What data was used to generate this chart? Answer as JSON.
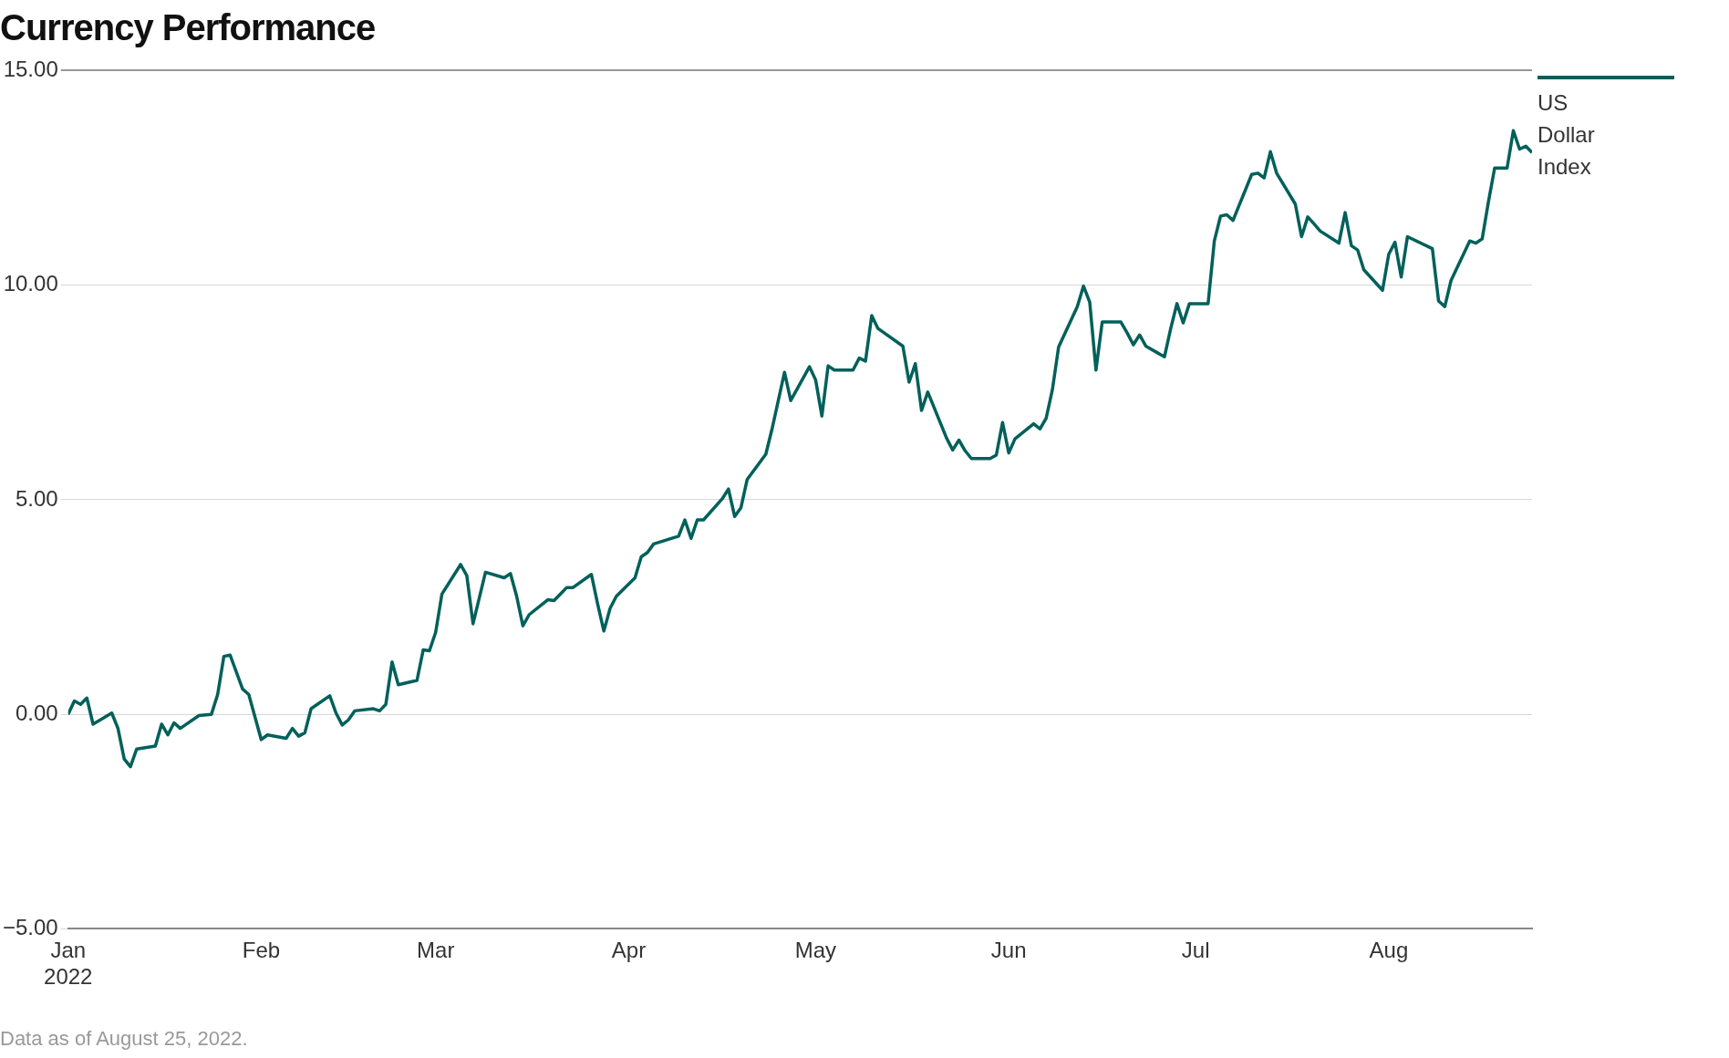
{
  "chart_data": {
    "type": "line",
    "title": "Currency Performance",
    "annotations": [
      "Data as of August 25, 2022."
    ],
    "x": [
      "2022-01-01",
      "2022-01-02",
      "2022-01-03",
      "2022-01-04",
      "2022-01-05",
      "2022-01-08",
      "2022-01-09",
      "2022-01-10",
      "2022-01-11",
      "2022-01-12",
      "2022-01-15",
      "2022-01-16",
      "2022-01-17",
      "2022-01-18",
      "2022-01-19",
      "2022-01-22",
      "2022-01-24",
      "2022-01-25",
      "2022-01-26",
      "2022-01-27",
      "2022-01-29",
      "2022-01-30",
      "2022-02-01",
      "2022-02-02",
      "2022-02-05",
      "2022-02-06",
      "2022-02-07",
      "2022-02-08",
      "2022-02-09",
      "2022-02-12",
      "2022-02-13",
      "2022-02-14",
      "2022-02-15",
      "2022-02-16",
      "2022-02-19",
      "2022-02-20",
      "2022-02-21",
      "2022-02-22",
      "2022-02-23",
      "2022-02-26",
      "2022-02-27",
      "2022-02-28",
      "2022-03-01",
      "2022-03-02",
      "2022-03-05",
      "2022-03-06",
      "2022-03-07",
      "2022-03-09",
      "2022-03-12",
      "2022-03-13",
      "2022-03-14",
      "2022-03-15",
      "2022-03-16",
      "2022-03-19",
      "2022-03-20",
      "2022-03-21",
      "2022-03-22",
      "2022-03-23",
      "2022-03-26",
      "2022-03-27",
      "2022-03-28",
      "2022-03-29",
      "2022-03-30",
      "2022-04-02",
      "2022-04-03",
      "2022-04-04",
      "2022-04-05",
      "2022-04-09",
      "2022-04-10",
      "2022-04-11",
      "2022-04-12",
      "2022-04-13",
      "2022-04-16",
      "2022-04-17",
      "2022-04-18",
      "2022-04-19",
      "2022-04-20",
      "2022-04-23",
      "2022-04-24",
      "2022-04-26",
      "2022-04-27",
      "2022-04-30",
      "2022-05-01",
      "2022-05-02",
      "2022-05-03",
      "2022-05-04",
      "2022-05-07",
      "2022-05-08",
      "2022-05-09",
      "2022-05-10",
      "2022-05-11",
      "2022-05-15",
      "2022-05-16",
      "2022-05-17",
      "2022-05-18",
      "2022-05-19",
      "2022-05-22",
      "2022-05-23",
      "2022-05-24",
      "2022-05-25",
      "2022-05-26",
      "2022-05-29",
      "2022-05-30",
      "2022-05-31",
      "2022-06-01",
      "2022-06-02",
      "2022-06-05",
      "2022-06-06",
      "2022-06-07",
      "2022-06-08",
      "2022-06-09",
      "2022-06-12",
      "2022-06-13",
      "2022-06-14",
      "2022-06-15",
      "2022-06-16",
      "2022-06-19",
      "2022-06-20",
      "2022-06-21",
      "2022-06-22",
      "2022-06-23",
      "2022-06-26",
      "2022-06-27",
      "2022-06-28",
      "2022-06-29",
      "2022-06-30",
      "2022-07-03",
      "2022-07-04",
      "2022-07-05",
      "2022-07-06",
      "2022-07-07",
      "2022-07-10",
      "2022-07-11",
      "2022-07-12",
      "2022-07-13",
      "2022-07-14",
      "2022-07-17",
      "2022-07-18",
      "2022-07-19",
      "2022-07-20",
      "2022-07-21",
      "2022-07-24",
      "2022-07-25",
      "2022-07-26",
      "2022-07-27",
      "2022-07-28",
      "2022-07-31",
      "2022-08-01",
      "2022-08-02",
      "2022-08-03",
      "2022-08-04",
      "2022-08-08",
      "2022-08-09",
      "2022-08-10",
      "2022-08-11",
      "2022-08-14",
      "2022-08-15",
      "2022-08-16",
      "2022-08-17",
      "2022-08-18",
      "2022-08-20",
      "2022-08-21",
      "2022-08-22",
      "2022-08-23",
      "2022-08-24"
    ],
    "series": [
      {
        "name": "US Dollar Index",
        "color": "#00605a",
        "values": [
          0.0,
          0.31,
          0.23,
          0.38,
          -0.23,
          0.03,
          -0.33,
          -1.04,
          -1.22,
          -0.81,
          -0.74,
          -0.23,
          -0.48,
          -0.2,
          -0.33,
          -0.03,
          0.0,
          0.46,
          1.35,
          1.38,
          0.59,
          0.46,
          -0.59,
          -0.48,
          -0.56,
          -0.33,
          -0.51,
          -0.43,
          0.13,
          0.43,
          0.03,
          -0.25,
          -0.13,
          0.08,
          0.13,
          0.08,
          0.23,
          1.22,
          0.69,
          0.79,
          1.5,
          1.48,
          1.91,
          2.8,
          3.49,
          3.23,
          2.11,
          3.31,
          3.18,
          3.28,
          2.75,
          2.06,
          2.32,
          2.67,
          2.65,
          2.8,
          2.95,
          2.95,
          3.26,
          2.57,
          1.94,
          2.47,
          2.75,
          3.18,
          3.67,
          3.77,
          3.97,
          4.15,
          4.53,
          4.1,
          4.53,
          4.53,
          5.02,
          5.25,
          4.61,
          4.81,
          5.47,
          6.06,
          6.65,
          7.97,
          7.31,
          8.1,
          7.79,
          6.95,
          8.12,
          8.02,
          8.02,
          8.3,
          8.23,
          9.29,
          8.99,
          8.58,
          7.74,
          8.17,
          7.08,
          7.51,
          6.44,
          6.16,
          6.39,
          6.14,
          5.96,
          5.96,
          6.04,
          6.8,
          6.09,
          6.42,
          6.77,
          6.65,
          6.9,
          7.56,
          8.56,
          9.5,
          9.98,
          9.6,
          8.02,
          9.14,
          9.14,
          8.89,
          8.61,
          8.84,
          8.58,
          8.33,
          8.99,
          9.57,
          9.12,
          9.57,
          9.57,
          11.03,
          11.61,
          11.64,
          11.51,
          12.58,
          12.61,
          12.5,
          13.11,
          12.61,
          11.89,
          11.13,
          11.59,
          11.43,
          11.26,
          10.98,
          11.69,
          10.92,
          10.82,
          10.36,
          9.88,
          10.72,
          11.0,
          10.19,
          11.13,
          10.85,
          9.63,
          9.5,
          10.11,
          11.03,
          10.98,
          11.08,
          11.94,
          12.73,
          12.73,
          13.6,
          13.17,
          13.24,
          13.09
        ]
      }
    ],
    "xlim": [
      "2022-01-01",
      "2022-08-24"
    ],
    "xticks": [
      {
        "value": "2022-01-01",
        "label": "Jan\n2022"
      },
      {
        "value": "2022-02-01",
        "label": "Feb"
      },
      {
        "value": "2022-03-01",
        "label": "Mar"
      },
      {
        "value": "2022-04-01",
        "label": "Apr"
      },
      {
        "value": "2022-05-01",
        "label": "May"
      },
      {
        "value": "2022-06-01",
        "label": "Jun"
      },
      {
        "value": "2022-07-01",
        "label": "Jul"
      },
      {
        "value": "2022-08-01",
        "label": "Aug"
      }
    ],
    "ylim": [
      -5,
      15
    ],
    "yticks": [
      {
        "value": -5,
        "label": "−5.00"
      },
      {
        "value": 0,
        "label": "0.00"
      },
      {
        "value": 5,
        "label": "5.00"
      },
      {
        "value": 10,
        "label": "10.00"
      },
      {
        "value": 15,
        "label": "15.00"
      }
    ],
    "grid": "y",
    "legend": "top right",
    "marker": "none",
    "line_style": "solid"
  }
}
